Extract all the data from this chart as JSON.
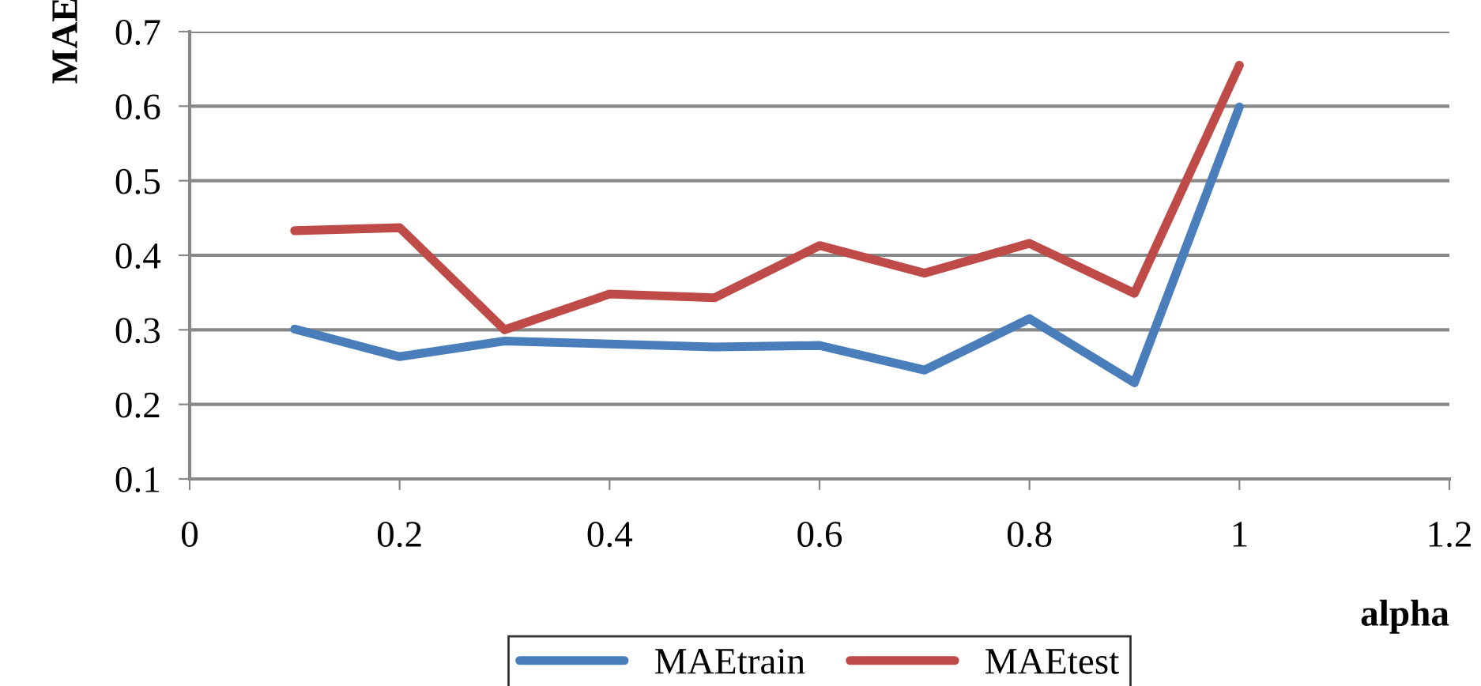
{
  "chart_data": {
    "type": "line",
    "xlabel": "alpha",
    "ylabel": "MAE",
    "x": [
      0.1,
      0.2,
      0.3,
      0.4,
      0.5,
      0.6,
      0.7,
      0.8,
      0.9,
      1.0
    ],
    "series": [
      {
        "name": "MAEtrain",
        "color": "#4a7ebb",
        "values": [
          0.301,
          0.264,
          0.285,
          0.281,
          0.277,
          0.279,
          0.246,
          0.315,
          0.229,
          0.599
        ]
      },
      {
        "name": "MAEtest",
        "color": "#be4b48",
        "values": [
          0.433,
          0.437,
          0.3,
          0.348,
          0.343,
          0.413,
          0.376,
          0.416,
          0.349,
          0.655
        ]
      }
    ],
    "xlim": [
      0,
      1.2
    ],
    "xticks": [
      0,
      0.2,
      0.4,
      0.6,
      0.8,
      1,
      1.2
    ],
    "ylim": [
      0.1,
      0.7
    ],
    "yticks": [
      0.1,
      0.2,
      0.3,
      0.4,
      0.5,
      0.6,
      0.7
    ],
    "grid": "y",
    "legend": "bottom",
    "marker": "none",
    "line_style": "solid"
  }
}
